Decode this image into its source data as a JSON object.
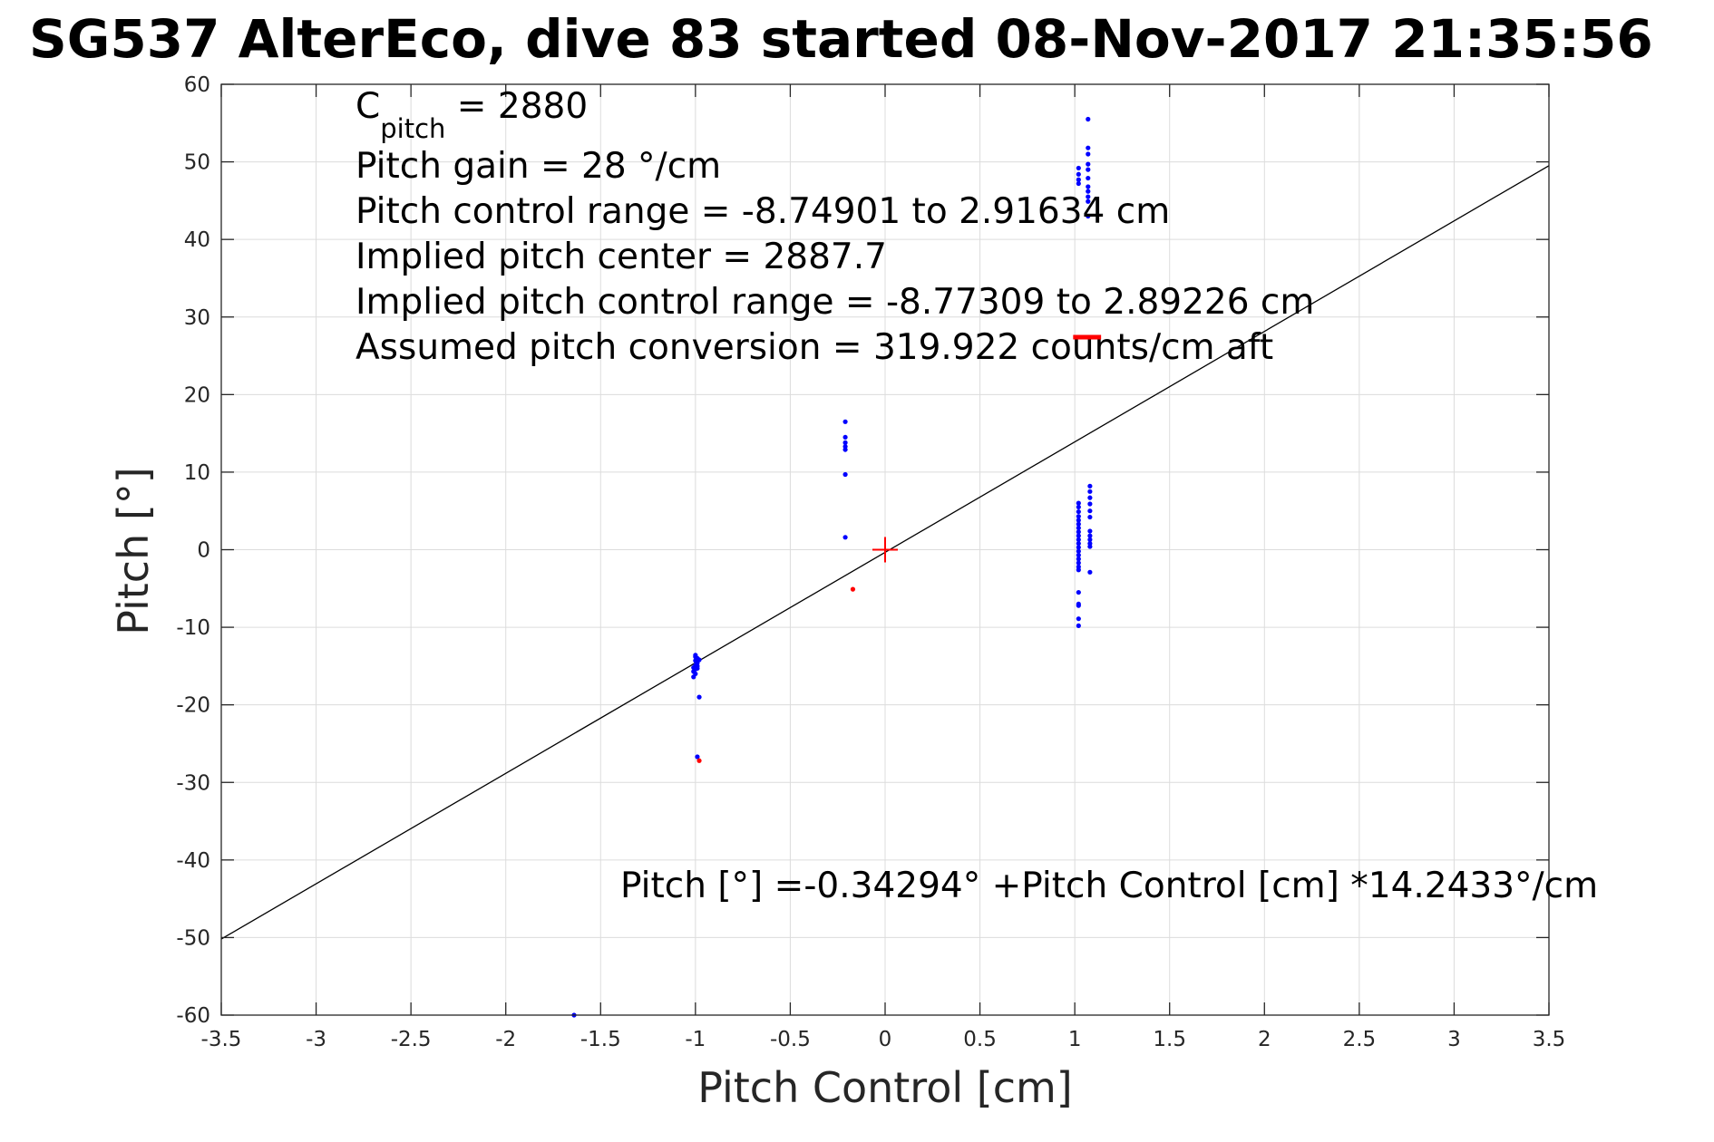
{
  "chart_data": {
    "type": "scatter",
    "title": "SG537 AlterEco, dive 83 started 08-Nov-2017 21:35:56",
    "xlabel": "Pitch Control [cm]",
    "ylabel": "Pitch [°]",
    "xlim": [
      -3.5,
      3.5
    ],
    "ylim": [
      -60,
      60
    ],
    "grid": true,
    "x_ticks": [
      -3.5,
      -3,
      -2.5,
      -2,
      -1.5,
      -1,
      -0.5,
      0,
      0.5,
      1,
      1.5,
      2,
      2.5,
      3,
      3.5
    ],
    "x_tick_labels": [
      "-3.5",
      "-3",
      "-2.5",
      "-2",
      "-1.5",
      "-1",
      "-0.5",
      "0",
      "0.5",
      "1",
      "1.5",
      "2",
      "2.5",
      "3",
      "3.5"
    ],
    "y_ticks": [
      -60,
      -50,
      -40,
      -30,
      -20,
      -10,
      0,
      10,
      20,
      30,
      40,
      50,
      60
    ],
    "y_tick_labels": [
      "-60",
      "-50",
      "-40",
      "-30",
      "-20",
      "-10",
      "0",
      "10",
      "20",
      "30",
      "40",
      "50",
      "60"
    ],
    "annotations": {
      "c_pitch_main": "C",
      "c_pitch_sub": "pitch",
      "c_pitch_value": " = 2880",
      "pitch_gain": "Pitch gain = 28 °/cm",
      "control_range": "Pitch control range = -8.74901 to 2.91634 cm",
      "implied_center": "Implied pitch center = 2887.7",
      "implied_range": "Implied pitch control range = -8.77309 to 2.89226 cm",
      "conversion": "Assumed pitch conversion = 319.922 counts/cm aft",
      "fit_equation": "Pitch [°] =-0.34294° +Pitch Control [cm] *14.2433°/cm"
    },
    "fit_line": {
      "intercept": -0.34294,
      "slope": 14.2433,
      "color": "#000000"
    },
    "center_marker": {
      "x": 0,
      "y": 0,
      "color": "#ff0000"
    },
    "series": [
      {
        "color": "#0000ff",
        "points": [
          [
            -1.0,
            -13.8
          ],
          [
            -0.99,
            -14.0
          ],
          [
            -1.0,
            -14.3
          ],
          [
            -0.99,
            -14.6
          ],
          [
            -1.0,
            -14.9
          ],
          [
            -1.01,
            -15.2
          ],
          [
            -1.0,
            -15.4
          ],
          [
            -0.99,
            -15.0
          ],
          [
            -1.01,
            -15.7
          ],
          [
            -1.0,
            -16.0
          ],
          [
            -1.01,
            -16.4
          ],
          [
            -0.98,
            -14.2
          ],
          [
            -1.0,
            -13.6
          ],
          [
            -0.99,
            -15.3
          ],
          [
            -0.98,
            -19.0
          ],
          [
            -0.99,
            -26.7
          ],
          [
            -1.64,
            -60
          ],
          [
            -0.21,
            16.5
          ],
          [
            -0.21,
            14.5
          ],
          [
            -0.21,
            13.8
          ],
          [
            -0.21,
            13.3
          ],
          [
            -0.21,
            12.9
          ],
          [
            -0.21,
            9.7
          ],
          [
            -0.21,
            1.6
          ],
          [
            1.02,
            6.0
          ],
          [
            1.02,
            5.5
          ],
          [
            1.02,
            4.9
          ],
          [
            1.02,
            4.3
          ],
          [
            1.02,
            3.8
          ],
          [
            1.02,
            3.3
          ],
          [
            1.02,
            2.8
          ],
          [
            1.02,
            2.3
          ],
          [
            1.02,
            1.8
          ],
          [
            1.02,
            1.3
          ],
          [
            1.02,
            0.8
          ],
          [
            1.02,
            0.3
          ],
          [
            1.02,
            -0.2
          ],
          [
            1.02,
            -0.7
          ],
          [
            1.02,
            -1.2
          ],
          [
            1.02,
            -1.7
          ],
          [
            1.02,
            -2.2
          ],
          [
            1.02,
            -2.6
          ],
          [
            1.02,
            -5.5
          ],
          [
            1.02,
            -7.0
          ],
          [
            1.02,
            -7.2
          ],
          [
            1.02,
            -8.9
          ],
          [
            1.02,
            -9.8
          ],
          [
            1.08,
            8.2
          ],
          [
            1.08,
            7.5
          ],
          [
            1.08,
            6.7
          ],
          [
            1.08,
            5.9
          ],
          [
            1.08,
            5.0
          ],
          [
            1.08,
            4.2
          ],
          [
            1.08,
            2.4
          ],
          [
            1.08,
            1.8
          ],
          [
            1.08,
            1.3
          ],
          [
            1.08,
            0.8
          ],
          [
            1.08,
            0.4
          ],
          [
            1.08,
            -2.9
          ],
          [
            1.07,
            55.5
          ],
          [
            1.07,
            51.8
          ],
          [
            1.07,
            51.0
          ],
          [
            1.07,
            49.7
          ],
          [
            1.07,
            49.0
          ],
          [
            1.02,
            49.2
          ],
          [
            1.02,
            48.4
          ],
          [
            1.02,
            47.7
          ],
          [
            1.02,
            47.2
          ],
          [
            1.07,
            47.9
          ],
          [
            1.07,
            46.8
          ],
          [
            1.07,
            46.2
          ],
          [
            1.07,
            45.5
          ],
          [
            1.07,
            44.9
          ],
          [
            1.07,
            43.0
          ]
        ]
      },
      {
        "color": "#ff0000",
        "points": [
          [
            -0.98,
            -27.2
          ],
          [
            -0.17,
            -5.1
          ]
        ]
      },
      {
        "color": "#ff0000",
        "marker": "dash",
        "points": [
          [
            1.02,
            27.4
          ],
          [
            1.05,
            27.4
          ],
          [
            1.08,
            27.4
          ],
          [
            1.11,
            27.4
          ]
        ]
      }
    ]
  }
}
